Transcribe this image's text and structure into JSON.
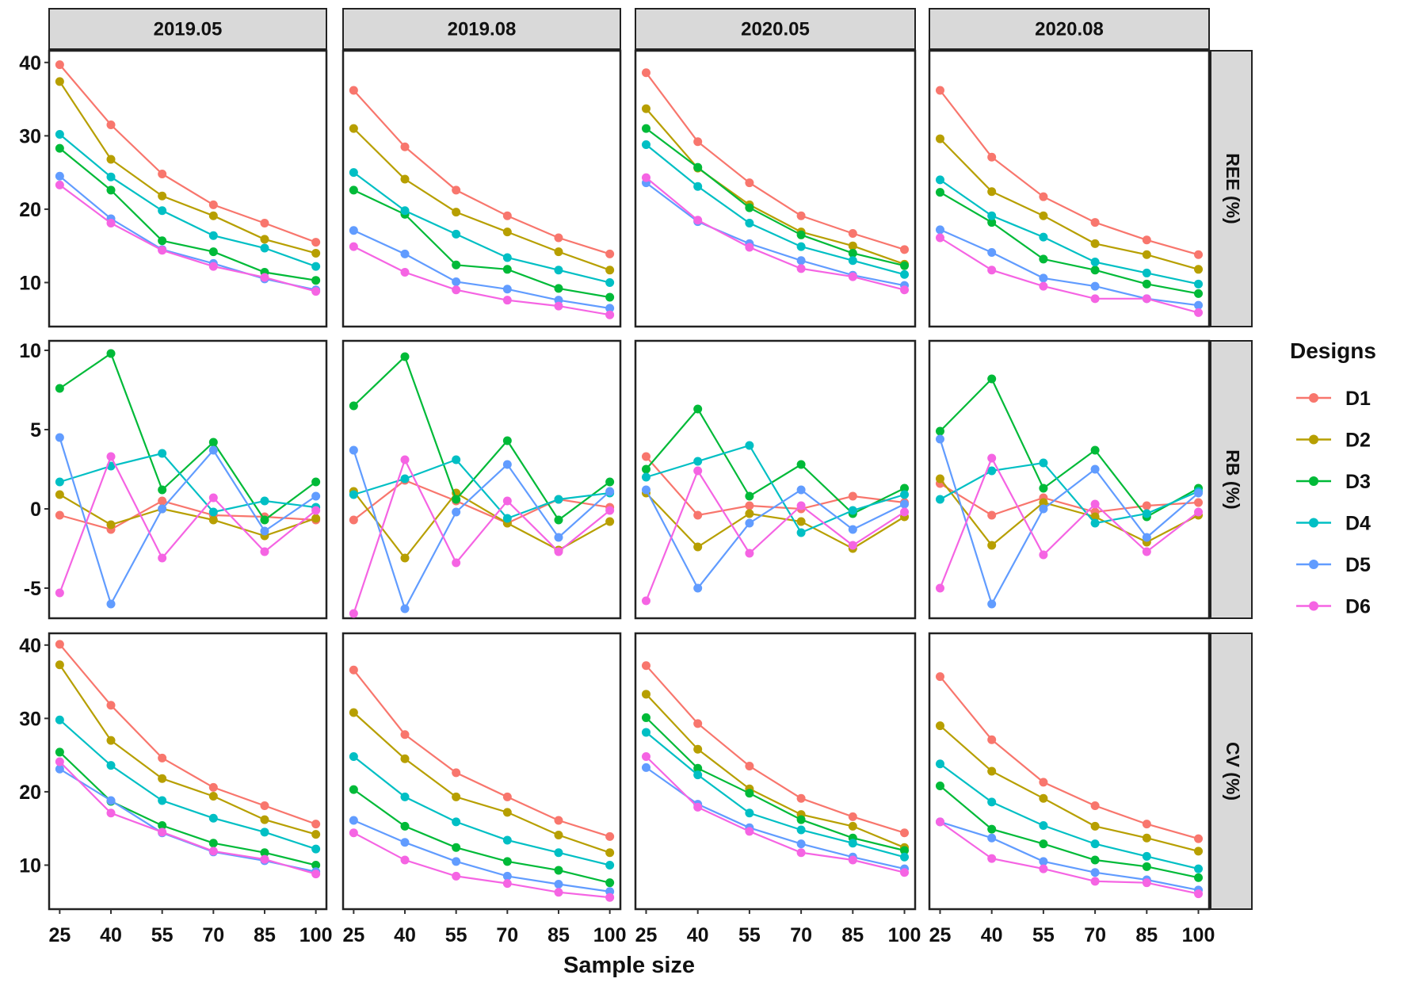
{
  "chart_data": {
    "type": "line",
    "xlabel": "Sample size",
    "legend_title": "Designs",
    "legend_position": "right",
    "columns": [
      "2019.05",
      "2019.08",
      "2020.05",
      "2020.08"
    ],
    "rows": [
      "REE (%)",
      "RB (%)",
      "CV (%)"
    ],
    "x": [
      25,
      40,
      55,
      70,
      85,
      100
    ],
    "x_ticks": [
      "25",
      "40",
      "55",
      "70",
      "85",
      "100"
    ],
    "xlim": [
      21.9,
      103.1
    ],
    "row_ylim": [
      [
        4.0,
        41.6
      ],
      [
        -6.9,
        10.6
      ],
      [
        4.0,
        41.6
      ]
    ],
    "row_yticks": [
      [
        10,
        20,
        30,
        40
      ],
      [
        -5,
        0,
        5,
        10
      ],
      [
        10,
        20,
        30,
        40
      ]
    ],
    "row_ytick_labels": [
      [
        "10",
        "20",
        "30",
        "40"
      ],
      [
        "-5",
        "0",
        "5",
        "10"
      ],
      [
        "10",
        "20",
        "30",
        "40"
      ]
    ],
    "designs": [
      "D1",
      "D2",
      "D3",
      "D4",
      "D5",
      "D6"
    ],
    "colors": [
      "#F8766D",
      "#B79F00",
      "#00BA38",
      "#00BFC4",
      "#619CFF",
      "#F564E3"
    ],
    "panels": [
      [
        [
          [
            39.7,
            31.5,
            24.8,
            20.6,
            18.1,
            15.5
          ],
          [
            37.4,
            26.8,
            21.8,
            19.1,
            15.9,
            14.0
          ],
          [
            28.3,
            22.6,
            15.7,
            14.2,
            11.4,
            10.3
          ],
          [
            30.2,
            24.4,
            19.8,
            16.4,
            14.7,
            12.2
          ],
          [
            24.5,
            18.7,
            14.5,
            12.6,
            10.5,
            9.0
          ],
          [
            23.3,
            18.1,
            14.4,
            12.2,
            10.7,
            8.8
          ]
        ],
        [
          [
            36.2,
            28.5,
            22.6,
            19.1,
            16.1,
            13.9
          ],
          [
            31.0,
            24.1,
            19.6,
            16.9,
            14.2,
            11.7
          ],
          [
            22.6,
            19.3,
            12.4,
            11.8,
            9.2,
            8.0
          ],
          [
            25.0,
            19.8,
            16.6,
            13.4,
            11.7,
            10.0
          ],
          [
            17.1,
            13.9,
            10.1,
            9.1,
            7.6,
            6.5
          ],
          [
            14.9,
            11.4,
            9.0,
            7.6,
            6.8,
            5.6
          ]
        ],
        [
          [
            38.6,
            29.2,
            23.6,
            19.1,
            16.7,
            14.5
          ],
          [
            33.7,
            25.6,
            20.6,
            16.9,
            15.0,
            12.5
          ],
          [
            31.0,
            25.7,
            20.2,
            16.5,
            14.0,
            12.3
          ],
          [
            28.8,
            23.1,
            18.1,
            14.9,
            13.0,
            11.1
          ],
          [
            23.6,
            18.3,
            15.3,
            13.0,
            11.0,
            9.6
          ],
          [
            24.3,
            18.5,
            14.8,
            11.9,
            10.8,
            9.0
          ]
        ],
        [
          [
            36.2,
            27.1,
            21.7,
            18.2,
            15.8,
            13.8
          ],
          [
            29.6,
            22.4,
            19.1,
            15.3,
            13.8,
            11.8
          ],
          [
            22.3,
            18.2,
            13.2,
            11.7,
            9.8,
            8.5
          ],
          [
            24.0,
            19.1,
            16.2,
            12.8,
            11.3,
            9.8
          ],
          [
            17.2,
            14.1,
            10.6,
            9.5,
            7.8,
            6.9
          ],
          [
            16.1,
            11.7,
            9.5,
            7.8,
            7.8,
            5.9
          ]
        ]
      ],
      [
        [
          [
            -0.4,
            -1.3,
            0.5,
            -0.4,
            -0.5,
            -0.7
          ],
          [
            0.9,
            -1.0,
            0.0,
            -0.7,
            -1.7,
            -0.6
          ],
          [
            7.6,
            9.8,
            1.2,
            4.2,
            -0.7,
            1.7
          ],
          [
            1.7,
            2.7,
            3.5,
            -0.2,
            0.5,
            0.1
          ],
          [
            4.5,
            -6.0,
            0.0,
            3.7,
            -1.4,
            0.8
          ],
          [
            -5.3,
            3.3,
            -3.1,
            0.7,
            -2.7,
            -0.1
          ]
        ],
        [
          [
            -0.7,
            1.8,
            0.5,
            -0.9,
            0.6,
            0.1
          ],
          [
            1.1,
            -3.1,
            1.0,
            -0.9,
            -2.6,
            -0.8
          ],
          [
            6.5,
            9.6,
            0.6,
            4.3,
            -0.7,
            1.7
          ],
          [
            0.9,
            1.9,
            3.1,
            -0.6,
            0.6,
            1.0
          ],
          [
            3.7,
            -6.3,
            -0.2,
            2.8,
            -1.8,
            1.1
          ],
          [
            -6.6,
            3.1,
            -3.4,
            0.5,
            -2.7,
            -0.1
          ]
        ],
        [
          [
            3.3,
            -0.4,
            0.2,
            0.0,
            0.8,
            0.4
          ],
          [
            1.0,
            -2.4,
            -0.3,
            -0.8,
            -2.5,
            -0.5
          ],
          [
            2.5,
            6.3,
            0.8,
            2.8,
            -0.3,
            1.3
          ],
          [
            2.0,
            3.0,
            4.0,
            -1.5,
            -0.1,
            0.9
          ],
          [
            1.2,
            -5.0,
            -0.9,
            1.2,
            -1.3,
            0.3
          ],
          [
            -5.8,
            2.4,
            -2.8,
            0.2,
            -2.3,
            -0.2
          ]
        ],
        [
          [
            1.6,
            -0.4,
            0.7,
            -0.2,
            0.2,
            0.4
          ],
          [
            1.9,
            -2.3,
            0.4,
            -0.5,
            -2.1,
            -0.4
          ],
          [
            4.9,
            8.2,
            1.3,
            3.7,
            -0.5,
            1.3
          ],
          [
            0.6,
            2.4,
            2.9,
            -0.9,
            -0.3,
            1.1
          ],
          [
            4.4,
            -6.0,
            0.0,
            2.5,
            -1.8,
            1.0
          ],
          [
            -5.0,
            3.2,
            -2.9,
            0.3,
            -2.7,
            -0.2
          ]
        ]
      ],
      [
        [
          [
            40.1,
            31.8,
            24.6,
            20.6,
            18.1,
            15.6
          ],
          [
            37.3,
            27.0,
            21.8,
            19.4,
            16.2,
            14.2
          ],
          [
            25.4,
            18.7,
            15.4,
            13.0,
            11.7,
            10.0
          ],
          [
            29.8,
            23.6,
            18.8,
            16.4,
            14.5,
            12.2
          ],
          [
            23.1,
            18.8,
            14.4,
            11.8,
            10.6,
            9.1
          ],
          [
            24.1,
            17.1,
            14.5,
            11.9,
            10.8,
            8.8
          ]
        ],
        [
          [
            36.6,
            27.8,
            22.6,
            19.3,
            16.1,
            13.9
          ],
          [
            30.8,
            24.5,
            19.3,
            17.2,
            14.1,
            11.7
          ],
          [
            20.3,
            15.3,
            12.4,
            10.5,
            9.3,
            7.6
          ],
          [
            24.8,
            19.3,
            15.9,
            13.4,
            11.7,
            10.0
          ],
          [
            16.1,
            13.1,
            10.5,
            8.5,
            7.4,
            6.4
          ],
          [
            14.4,
            10.7,
            8.5,
            7.5,
            6.3,
            5.6
          ]
        ],
        [
          [
            37.2,
            29.3,
            23.5,
            19.1,
            16.6,
            14.4
          ],
          [
            33.3,
            25.8,
            20.4,
            16.9,
            15.3,
            12.4
          ],
          [
            30.1,
            23.2,
            19.8,
            16.2,
            13.7,
            12.0
          ],
          [
            28.1,
            22.3,
            17.1,
            14.8,
            13.0,
            11.1
          ],
          [
            23.3,
            18.3,
            15.1,
            12.9,
            11.1,
            9.5
          ],
          [
            24.8,
            17.9,
            14.6,
            11.7,
            10.7,
            9.0
          ]
        ],
        [
          [
            35.7,
            27.1,
            21.3,
            18.1,
            15.6,
            13.6
          ],
          [
            29.0,
            22.8,
            19.1,
            15.3,
            13.7,
            11.9
          ],
          [
            20.8,
            14.9,
            12.9,
            10.7,
            9.8,
            8.3
          ],
          [
            23.8,
            18.6,
            15.4,
            12.9,
            11.2,
            9.5
          ],
          [
            15.9,
            13.7,
            10.5,
            9.0,
            8.0,
            6.6
          ],
          [
            15.9,
            10.9,
            9.5,
            7.8,
            7.6,
            6.1
          ]
        ]
      ]
    ]
  }
}
